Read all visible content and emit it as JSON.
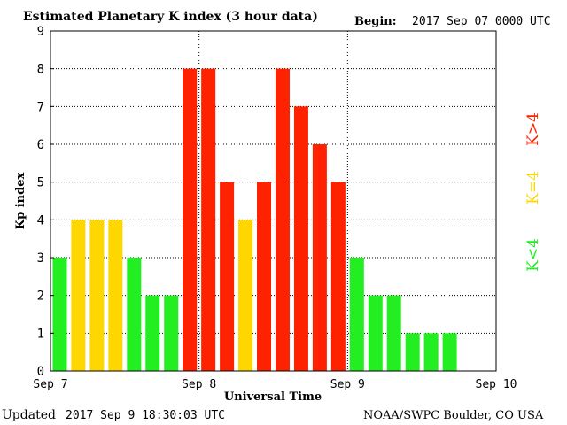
{
  "header": {
    "title": "Estimated Planetary K index (3 hour data)",
    "begin_label": "Begin:",
    "begin_value": "2017 Sep 07 0000 UTC"
  },
  "footer": {
    "updated_label": "Updated",
    "updated_value": "2017 Sep  9 18:30:03 UTC",
    "source": "NOAA/SWPC Boulder, CO USA"
  },
  "colors": {
    "low": "#22ee22",
    "equal": "#ffd700",
    "high": "#ff2200"
  },
  "chart_data": {
    "type": "bar",
    "title": "Estimated Planetary K index (3 hour data)",
    "xlabel": "Universal Time",
    "ylabel": "Kp index",
    "ylim": [
      0,
      9
    ],
    "yticks": [
      "0",
      "1",
      "2",
      "3",
      "4",
      "5",
      "6",
      "7",
      "8",
      "9"
    ],
    "xticks": [
      "Sep 7",
      "Sep 8",
      "Sep 9",
      "Sep 10"
    ],
    "grid": "dotted",
    "interval_hours": 3,
    "values": [
      3,
      4,
      4,
      4,
      3,
      2,
      2,
      8,
      8,
      5,
      4,
      5,
      8,
      7,
      6,
      5,
      3,
      2,
      2,
      1,
      1,
      1
    ],
    "legend": [
      {
        "label": "K<4",
        "color": "#22ee22"
      },
      {
        "label": "K=4",
        "color": "#ffd700"
      },
      {
        "label": "K>4",
        "color": "#ff2200"
      }
    ]
  }
}
